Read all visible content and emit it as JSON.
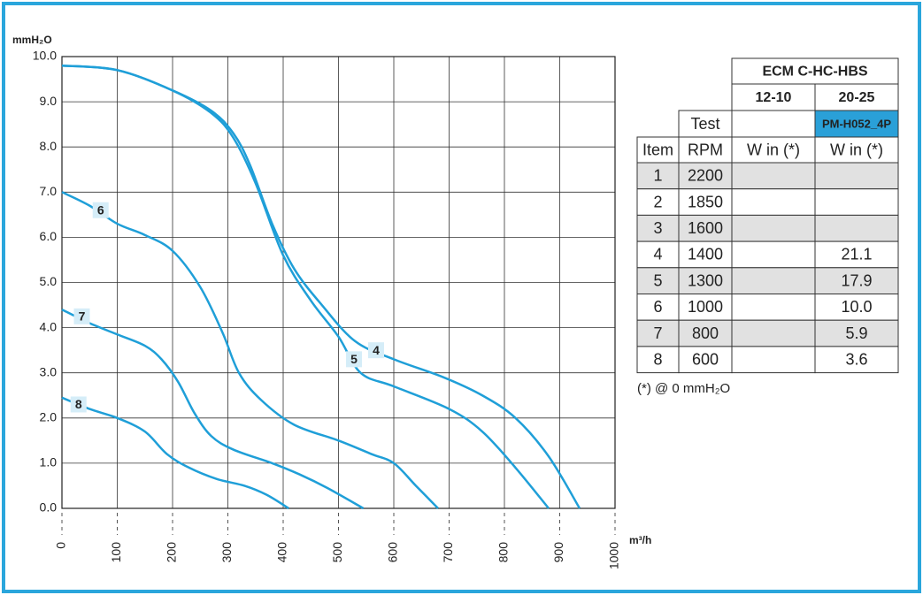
{
  "chart_data": {
    "type": "line",
    "y_label": "mmH₂O",
    "x_label": "m³/h",
    "xlim": [
      0,
      1000
    ],
    "xticks": [
      0,
      100,
      200,
      300,
      400,
      500,
      600,
      700,
      800,
      900,
      1000
    ],
    "ylim": [
      0,
      10
    ],
    "yticks": [
      {
        "value": 0,
        "label": "0.0"
      },
      {
        "value": 1,
        "label": "1.0"
      },
      {
        "value": 2,
        "label": "2.0"
      },
      {
        "value": 3,
        "label": "3.0"
      },
      {
        "value": 4,
        "label": "4.0"
      },
      {
        "value": 5,
        "label": "5.0"
      },
      {
        "value": 6,
        "label": "6.0"
      },
      {
        "value": 7,
        "label": "7.0"
      },
      {
        "value": 8,
        "label": "8.0"
      },
      {
        "value": 9,
        "label": "9.0"
      },
      {
        "value": 10,
        "label": "10.0"
      }
    ],
    "grid": true,
    "series": [
      {
        "name": "4",
        "color": "#1f9fd8",
        "x": [
          0,
          100,
          200,
          270,
          310,
          340,
          380,
          420,
          470,
          530,
          600,
          690,
          760,
          820,
          880,
          936
        ],
        "values": [
          9.8,
          9.7,
          9.25,
          8.8,
          8.3,
          7.6,
          6.3,
          5.3,
          4.5,
          3.7,
          3.3,
          2.9,
          2.5,
          2.0,
          1.15,
          0
        ]
      },
      {
        "name": "5",
        "color": "#1f9fd8",
        "x": [
          0,
          100,
          200,
          270,
          310,
          350,
          400,
          450,
          500,
          540,
          600,
          700,
          760,
          820,
          880
        ],
        "values": [
          9.8,
          9.7,
          9.25,
          8.75,
          8.2,
          7.2,
          5.6,
          4.6,
          3.8,
          3.0,
          2.7,
          2.2,
          1.7,
          0.9,
          0
        ]
      },
      {
        "name": "6",
        "color": "#1f9fd8",
        "x": [
          0,
          50,
          100,
          150,
          200,
          250,
          290,
          320,
          360,
          420,
          500,
          560,
          600,
          640,
          680
        ],
        "values": [
          7.0,
          6.7,
          6.3,
          6.05,
          5.7,
          4.9,
          3.9,
          3.0,
          2.4,
          1.85,
          1.5,
          1.2,
          1.0,
          0.5,
          0
        ]
      },
      {
        "name": "7",
        "color": "#1f9fd8",
        "x": [
          0,
          50,
          100,
          150,
          180,
          210,
          240,
          270,
          310,
          380,
          430,
          480,
          545
        ],
        "values": [
          4.4,
          4.1,
          3.85,
          3.6,
          3.3,
          2.8,
          2.1,
          1.6,
          1.3,
          1.0,
          0.75,
          0.45,
          0
        ]
      },
      {
        "name": "8",
        "color": "#1f9fd8",
        "x": [
          0,
          50,
          100,
          150,
          190,
          230,
          280,
          330,
          370,
          410
        ],
        "values": [
          2.45,
          2.2,
          2.0,
          1.7,
          1.2,
          0.9,
          0.65,
          0.5,
          0.3,
          0
        ]
      }
    ]
  },
  "table": {
    "title": "ECM C-HC-HBS",
    "models": [
      "12-10",
      "20-25"
    ],
    "test": "Test",
    "motor": "PM-H052_4P",
    "columns": [
      "Item",
      "RPM",
      "W in (*)",
      "W in (*)"
    ],
    "rows": [
      {
        "item": "1",
        "rpm": "2200"
      },
      {
        "item": "2",
        "rpm": "1850"
      },
      {
        "item": "3",
        "rpm": "1600"
      },
      {
        "item": "4",
        "rpm": "1400",
        "w_in_20_25": "21.1"
      },
      {
        "item": "5",
        "rpm": "1300",
        "w_in_20_25": "17.9"
      },
      {
        "item": "6",
        "rpm": "1000",
        "w_in_20_25": "10.0"
      },
      {
        "item": "7",
        "rpm": "800",
        "w_in_20_25": "5.9"
      },
      {
        "item": "8",
        "rpm": "600",
        "w_in_20_25": "3.6"
      }
    ],
    "footnote": "(*) @ 0 mmH₂O"
  }
}
